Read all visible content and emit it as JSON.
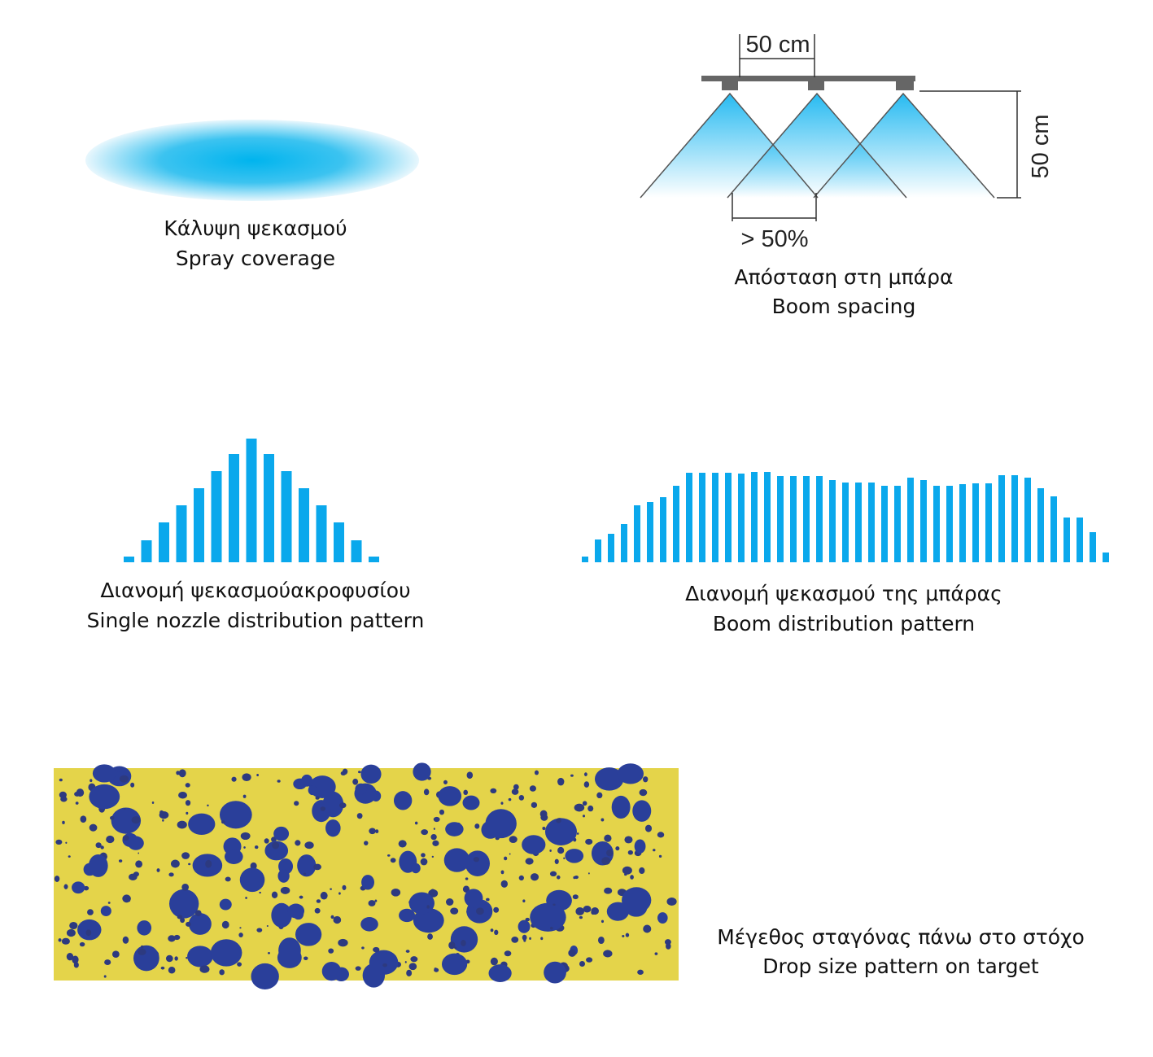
{
  "coverage": {
    "caption_el": "Κάλυψη ψεκασμού",
    "caption_en": "Spray coverage"
  },
  "spacing": {
    "width_label": "50 cm",
    "height_label": "50 cm",
    "overlap_label": "> 50%",
    "caption_el": "Απόσταση στη μπάρα",
    "caption_en": "Boom spacing"
  },
  "single": {
    "caption_el": "Διανομή ψεκασμούακροφυσίου",
    "caption_en": "Single nozzle distribution pattern"
  },
  "boom": {
    "caption_el": "Διανομή ψεκασμού της μπάρας",
    "caption_en": "Boom distribution pattern"
  },
  "drops": {
    "caption_el": "Μέγεθος σταγόνας πάνω στο στόχο",
    "caption_en": "Drop size pattern on target"
  }
}
